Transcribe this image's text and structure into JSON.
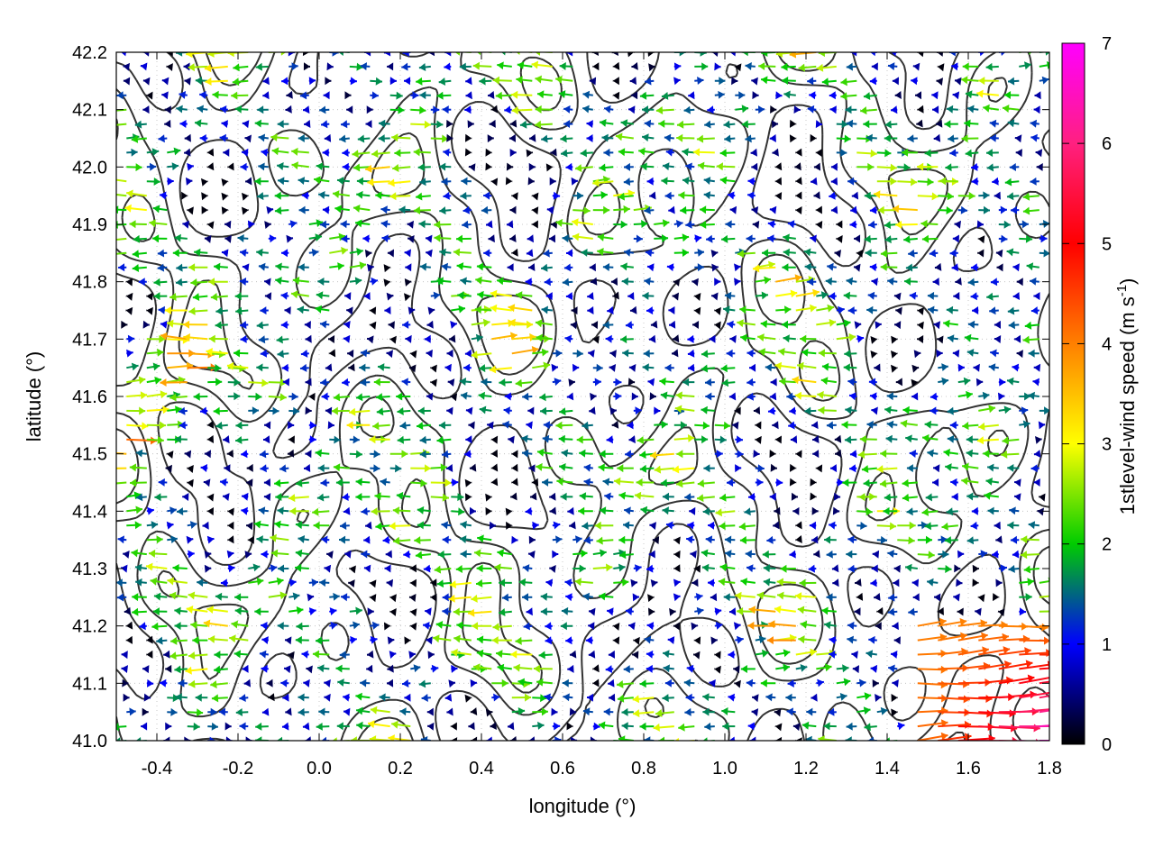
{
  "chart_data": {
    "type": "vector-field",
    "xlabel": "longitude (°)",
    "ylabel": "latitude (°)",
    "xlim": [
      -0.5,
      1.8
    ],
    "ylim": [
      41.0,
      42.2
    ],
    "x_ticks": [
      "-0.4",
      "-0.2",
      "0.0",
      "0.2",
      "0.4",
      "0.6",
      "0.8",
      "1.0",
      "1.2",
      "1.4",
      "1.6",
      "1.8"
    ],
    "y_ticks": [
      "41.0",
      "41.1",
      "41.2",
      "41.3",
      "41.4",
      "41.5",
      "41.6",
      "41.7",
      "41.8",
      "41.9",
      "42.0",
      "42.1",
      "42.2"
    ],
    "grid": true,
    "colorbar": {
      "label_main": "1stlevel-wind speed (m s",
      "label_sup": "-1",
      "label_end": ")",
      "range": [
        0,
        7
      ],
      "ticks": [
        "0",
        "1",
        "2",
        "3",
        "4",
        "5",
        "6",
        "7"
      ],
      "colors": [
        "#000000",
        "#0000ff",
        "#00cc00",
        "#ffff00",
        "#ff8000",
        "#ff0000",
        "#ff00ff"
      ]
    },
    "contour_color": "#333333",
    "vector_grid": {
      "lon_step": 0.05,
      "lat_step": 0.025,
      "scale_deg_per_ms": 0.018
    }
  }
}
